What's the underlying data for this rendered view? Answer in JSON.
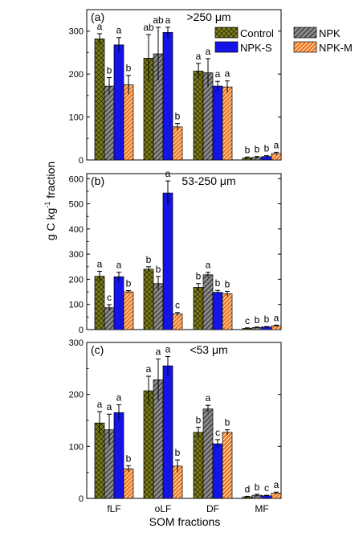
{
  "figure": {
    "ylabel_parts": [
      "g C kg",
      "-1",
      " fraction"
    ],
    "xlabel": "SOM fractions"
  },
  "legend": {
    "items": [
      {
        "name": "Control",
        "color": "#7f7f1f"
      },
      {
        "name": "NPK",
        "color": "#8c8c8c"
      },
      {
        "name": "NPK-S",
        "color": "#1414e6"
      },
      {
        "name": "NPK-M",
        "color": "#f07a1e"
      }
    ]
  },
  "chart_data": [
    {
      "type": "bar",
      "panel": "(a)",
      "title": ">250 μm",
      "categories": [
        "fLF",
        "oLF",
        "DF",
        "MF"
      ],
      "ylim": [
        0,
        350
      ],
      "yticks": [
        0,
        100,
        200,
        300
      ],
      "grid": false,
      "legend_position": "top-right",
      "series": [
        {
          "name": "Control",
          "values": [
            282,
            237,
            207,
            5
          ],
          "errors": [
            12,
            55,
            18,
            2
          ],
          "letters": [
            "a",
            "ab",
            "a",
            "b"
          ]
        },
        {
          "name": "NPK",
          "values": [
            172,
            247,
            203,
            6
          ],
          "errors": [
            20,
            62,
            33,
            2
          ],
          "letters": [
            "b",
            "ab",
            "a",
            "b"
          ]
        },
        {
          "name": "NPK-S",
          "values": [
            268,
            297,
            172,
            8
          ],
          "errors": [
            17,
            12,
            11,
            2
          ],
          "letters": [
            "a",
            "a",
            "a",
            "b"
          ]
        },
        {
          "name": "NPK-M",
          "values": [
            175,
            77,
            170,
            15
          ],
          "errors": [
            22,
            8,
            14,
            3
          ],
          "letters": [
            "b",
            "b",
            "a",
            "a"
          ]
        }
      ]
    },
    {
      "type": "bar",
      "panel": "(b)",
      "title": "53-250 μm",
      "categories": [
        "fLF",
        "oLF",
        "DF",
        "MF"
      ],
      "ylim": [
        0,
        620
      ],
      "yticks": [
        0,
        100,
        200,
        300,
        400,
        500,
        600
      ],
      "grid": false,
      "series": [
        {
          "name": "Control",
          "values": [
            212,
            240,
            168,
            5
          ],
          "errors": [
            20,
            10,
            15,
            2
          ],
          "letters": [
            "a",
            "b",
            "b",
            "c"
          ]
        },
        {
          "name": "NPK",
          "values": [
            87,
            183,
            218,
            8
          ],
          "errors": [
            12,
            28,
            10,
            2
          ],
          "letters": [
            "c",
            "b",
            "a",
            "b"
          ]
        },
        {
          "name": "NPK-S",
          "values": [
            210,
            543,
            148,
            10
          ],
          "errors": [
            18,
            48,
            8,
            2
          ],
          "letters": [
            "a",
            "a",
            "b",
            "b"
          ]
        },
        {
          "name": "NPK-M",
          "values": [
            150,
            62,
            142,
            15
          ],
          "errors": [
            5,
            6,
            10,
            3
          ],
          "letters": [
            "b",
            "c",
            "b",
            "a"
          ]
        }
      ]
    },
    {
      "type": "bar",
      "panel": "(c)",
      "title": "<53 μm",
      "categories": [
        "fLF",
        "oLF",
        "DF",
        "MF"
      ],
      "ylim": [
        0,
        300
      ],
      "yticks": [
        0,
        100,
        200,
        300
      ],
      "grid": false,
      "series": [
        {
          "name": "Control",
          "values": [
            145,
            207,
            127,
            3
          ],
          "errors": [
            22,
            28,
            10,
            1
          ],
          "letters": [
            "a",
            "a",
            "b",
            "d"
          ]
        },
        {
          "name": "NPK",
          "values": [
            132,
            228,
            172,
            6
          ],
          "errors": [
            30,
            40,
            7,
            2
          ],
          "letters": [
            "a",
            "a",
            "a",
            "b"
          ]
        },
        {
          "name": "NPK-S",
          "values": [
            165,
            255,
            105,
            5
          ],
          "errors": [
            15,
            18,
            8,
            1
          ],
          "letters": [
            "a",
            "a",
            "c",
            "c"
          ]
        },
        {
          "name": "NPK-M",
          "values": [
            57,
            62,
            127,
            10
          ],
          "errors": [
            6,
            12,
            5,
            2
          ],
          "letters": [
            "b",
            "b",
            "b",
            "a"
          ]
        }
      ]
    }
  ]
}
